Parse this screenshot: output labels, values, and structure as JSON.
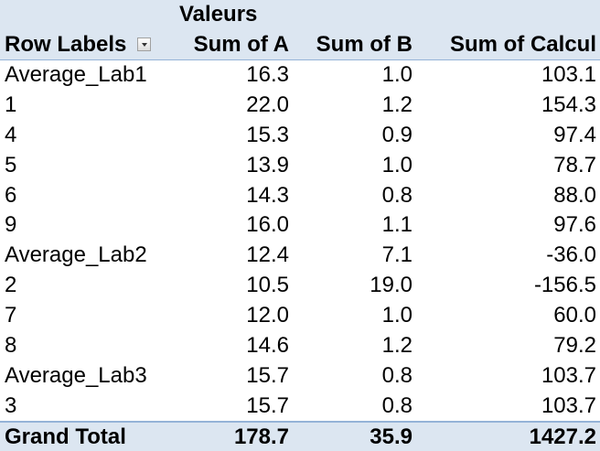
{
  "header": {
    "values_label": "Valeurs",
    "row_labels": "Row Labels",
    "columns": [
      "Sum of A",
      "Sum of B",
      "Sum of Calcul"
    ]
  },
  "rows": [
    [
      "Average_Lab1",
      "16.3",
      "1.0",
      "103.1"
    ],
    [
      "1",
      "22.0",
      "1.2",
      "154.3"
    ],
    [
      "4",
      "15.3",
      "0.9",
      "97.4"
    ],
    [
      "5",
      "13.9",
      "1.0",
      "78.7"
    ],
    [
      "6",
      "14.3",
      "0.8",
      "88.0"
    ],
    [
      "9",
      "16.0",
      "1.1",
      "97.6"
    ],
    [
      "Average_Lab2",
      "12.4",
      "7.1",
      "-36.0"
    ],
    [
      "2",
      "10.5",
      "19.0",
      "-156.5"
    ],
    [
      "7",
      "12.0",
      "1.0",
      "60.0"
    ],
    [
      "8",
      "14.6",
      "1.2",
      "79.2"
    ],
    [
      "Average_Lab3",
      "15.7",
      "0.8",
      "103.7"
    ],
    [
      "3",
      "15.7",
      "0.8",
      "103.7"
    ]
  ],
  "grand_total": [
    "Grand Total",
    "178.7",
    "35.9",
    "1427.2"
  ]
}
